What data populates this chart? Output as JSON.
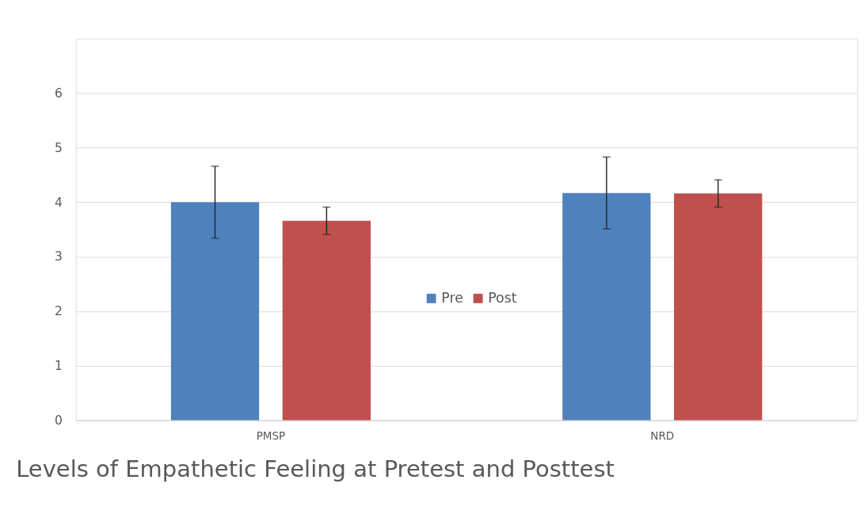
{
  "chart_data": {
    "type": "bar",
    "title": "Levels of Empathetic Feeling at Pretest and Posttest",
    "categories": [
      "PMSP",
      "NRD"
    ],
    "series": [
      {
        "name": "Pre",
        "color": "#4f81bd",
        "values": [
          4.0,
          4.17
        ],
        "errors": [
          0.66,
          0.66
        ]
      },
      {
        "name": "Post",
        "color": "#c0504d",
        "values": [
          3.66,
          4.16
        ],
        "errors": [
          0.25,
          0.25
        ]
      }
    ],
    "ylim": [
      0,
      7
    ],
    "yticks": [
      0,
      1,
      2,
      3,
      4,
      5,
      6
    ],
    "grid": "y",
    "legend": "bottom"
  }
}
